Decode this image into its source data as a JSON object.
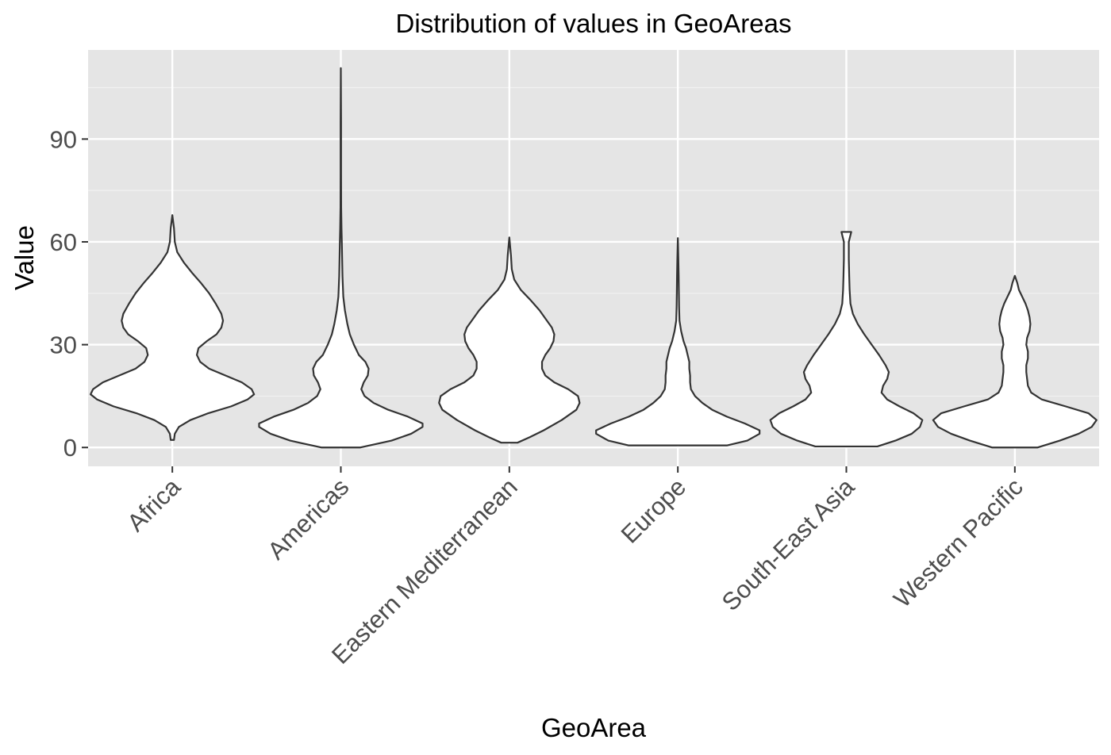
{
  "colors": {
    "panel_background": "#e5e5e5",
    "grid_major": "#ffffff",
    "grid_minor": "#f2f2f2",
    "violin_fill": "#ffffff",
    "violin_outline": "#333333",
    "tick_text": "#4d4d4d",
    "title_text": "#000000"
  },
  "chart_data": {
    "type": "violin",
    "title": "Distribution of values in GeoAreas",
    "xlabel": "GeoArea",
    "ylabel": "Value",
    "categories": [
      "Africa",
      "Americas",
      "Eastern Mediterranean",
      "Europe",
      "South-East Asia",
      "Western Pacific"
    ],
    "ylim": [
      -5.5,
      116
    ],
    "y_ticks": [
      0,
      30,
      60,
      90
    ],
    "y_tick_labels": [
      "0",
      "30",
      "60",
      "90"
    ],
    "grid": true,
    "legend": "none",
    "series": [
      {
        "category": "Africa",
        "min": 2.2,
        "max": 67.8,
        "density_profile": [
          [
            2.2,
            0.02
          ],
          [
            4,
            0.03
          ],
          [
            6,
            0.08
          ],
          [
            8,
            0.22
          ],
          [
            10,
            0.44
          ],
          [
            12,
            0.72
          ],
          [
            14,
            0.92
          ],
          [
            15.5,
            1.0
          ],
          [
            17,
            0.97
          ],
          [
            19,
            0.85
          ],
          [
            21,
            0.65
          ],
          [
            23,
            0.45
          ],
          [
            25,
            0.34
          ],
          [
            27,
            0.3
          ],
          [
            29,
            0.32
          ],
          [
            31,
            0.42
          ],
          [
            33,
            0.54
          ],
          [
            35,
            0.6
          ],
          [
            37,
            0.62
          ],
          [
            39,
            0.6
          ],
          [
            42,
            0.53
          ],
          [
            45,
            0.45
          ],
          [
            48,
            0.35
          ],
          [
            51,
            0.24
          ],
          [
            54,
            0.14
          ],
          [
            57,
            0.06
          ],
          [
            60,
            0.03
          ],
          [
            64,
            0.02
          ],
          [
            67.8,
            0.0
          ]
        ]
      },
      {
        "category": "Americas",
        "min": 0,
        "max": 110.7,
        "density_profile": [
          [
            0,
            0.24
          ],
          [
            2,
            0.62
          ],
          [
            4,
            0.86
          ],
          [
            6,
            1.0
          ],
          [
            7,
            1.0
          ],
          [
            9,
            0.82
          ],
          [
            11,
            0.58
          ],
          [
            13,
            0.4
          ],
          [
            15,
            0.29
          ],
          [
            17,
            0.25
          ],
          [
            19,
            0.28
          ],
          [
            21,
            0.33
          ],
          [
            23,
            0.34
          ],
          [
            25,
            0.3
          ],
          [
            27,
            0.22
          ],
          [
            30,
            0.16
          ],
          [
            33,
            0.11
          ],
          [
            36,
            0.08
          ],
          [
            40,
            0.05
          ],
          [
            44,
            0.03
          ],
          [
            50,
            0.02
          ],
          [
            56,
            0.015
          ],
          [
            60,
            0.012
          ],
          [
            64,
            0.008
          ],
          [
            70,
            0.004
          ],
          [
            80,
            0.003
          ],
          [
            95,
            0.003
          ],
          [
            110.7,
            0.0
          ]
        ]
      },
      {
        "category": "Eastern Mediterranean",
        "min": 1.4,
        "max": 61.3,
        "density_profile": [
          [
            1.4,
            0.1
          ],
          [
            3,
            0.25
          ],
          [
            5,
            0.42
          ],
          [
            8,
            0.64
          ],
          [
            11,
            0.82
          ],
          [
            13,
            0.86
          ],
          [
            15,
            0.84
          ],
          [
            17,
            0.72
          ],
          [
            19,
            0.55
          ],
          [
            21,
            0.44
          ],
          [
            23,
            0.4
          ],
          [
            25,
            0.4
          ],
          [
            27,
            0.44
          ],
          [
            29,
            0.5
          ],
          [
            31,
            0.54
          ],
          [
            33,
            0.55
          ],
          [
            35,
            0.52
          ],
          [
            37,
            0.46
          ],
          [
            40,
            0.37
          ],
          [
            43,
            0.26
          ],
          [
            46,
            0.14
          ],
          [
            49,
            0.06
          ],
          [
            52,
            0.03
          ],
          [
            56,
            0.02
          ],
          [
            61.3,
            0.0
          ]
        ]
      },
      {
        "category": "Europe",
        "min": 0.6,
        "max": 61.1,
        "density_profile": [
          [
            0.6,
            0.6
          ],
          [
            2,
            0.85
          ],
          [
            4,
            1.0
          ],
          [
            5,
            1.0
          ],
          [
            7,
            0.82
          ],
          [
            9,
            0.6
          ],
          [
            11,
            0.42
          ],
          [
            13,
            0.3
          ],
          [
            15,
            0.21
          ],
          [
            17,
            0.16
          ],
          [
            19,
            0.15
          ],
          [
            21,
            0.15
          ],
          [
            23,
            0.14
          ],
          [
            25,
            0.14
          ],
          [
            27,
            0.12
          ],
          [
            29,
            0.1
          ],
          [
            31,
            0.07
          ],
          [
            34,
            0.04
          ],
          [
            37,
            0.02
          ],
          [
            41,
            0.015
          ],
          [
            46,
            0.012
          ],
          [
            50,
            0.01
          ],
          [
            55,
            0.006
          ],
          [
            61.1,
            0.0
          ]
        ]
      },
      {
        "category": "South-East Asia",
        "min": 0.3,
        "max": 62.9,
        "density_profile": [
          [
            0.3,
            0.38
          ],
          [
            2,
            0.6
          ],
          [
            4,
            0.8
          ],
          [
            6,
            0.9
          ],
          [
            8,
            0.93
          ],
          [
            10,
            0.82
          ],
          [
            12,
            0.65
          ],
          [
            14,
            0.5
          ],
          [
            16,
            0.43
          ],
          [
            18,
            0.45
          ],
          [
            20,
            0.5
          ],
          [
            22,
            0.52
          ],
          [
            24,
            0.48
          ],
          [
            27,
            0.4
          ],
          [
            30,
            0.31
          ],
          [
            33,
            0.22
          ],
          [
            36,
            0.14
          ],
          [
            39,
            0.08
          ],
          [
            42,
            0.05
          ],
          [
            46,
            0.04
          ],
          [
            50,
            0.035
          ],
          [
            55,
            0.03
          ],
          [
            60,
            0.03
          ],
          [
            62.9,
            0.06
          ]
        ]
      },
      {
        "category": "Western Pacific",
        "min": 0,
        "max": 50.1,
        "density_profile": [
          [
            0,
            0.28
          ],
          [
            2,
            0.55
          ],
          [
            4,
            0.78
          ],
          [
            6,
            0.94
          ],
          [
            8,
            1.0
          ],
          [
            10,
            0.9
          ],
          [
            12,
            0.62
          ],
          [
            14,
            0.33
          ],
          [
            16,
            0.2
          ],
          [
            18,
            0.16
          ],
          [
            20,
            0.15
          ],
          [
            22,
            0.14
          ],
          [
            24,
            0.14
          ],
          [
            26,
            0.16
          ],
          [
            28,
            0.16
          ],
          [
            30,
            0.14
          ],
          [
            32,
            0.15
          ],
          [
            34,
            0.18
          ],
          [
            36,
            0.19
          ],
          [
            38,
            0.18
          ],
          [
            40,
            0.16
          ],
          [
            42,
            0.13
          ],
          [
            44,
            0.09
          ],
          [
            46,
            0.05
          ],
          [
            48,
            0.03
          ],
          [
            50.1,
            0.0
          ]
        ]
      }
    ]
  }
}
